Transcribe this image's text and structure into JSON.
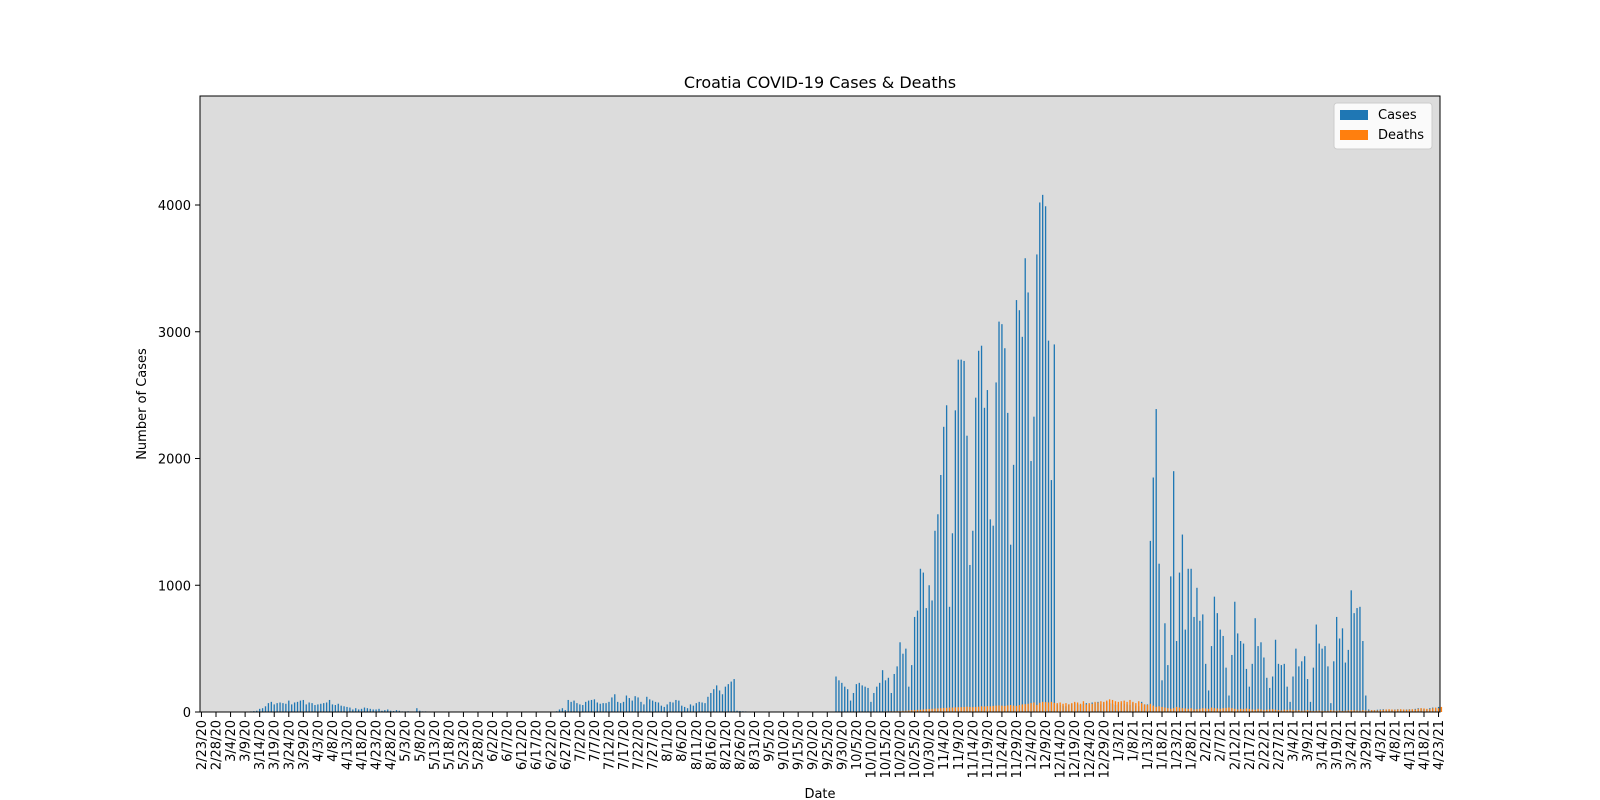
{
  "chart_data": {
    "type": "bar",
    "title": "Croatia COVID-19 Cases & Deaths",
    "xlabel": "Date",
    "ylabel": "Number of Cases",
    "ylim": [
      0,
      4860
    ],
    "yticks": [
      0,
      1000,
      2000,
      3000,
      4000
    ],
    "start_date": "2020-02-23",
    "tick_every": 5,
    "grid": false,
    "legend_position": "top-right",
    "series": [
      {
        "name": "Cases",
        "color": "#1f77b4",
        "values": [
          0,
          0,
          1,
          2,
          0,
          0,
          1,
          2,
          3,
          0,
          0,
          2,
          0,
          0,
          1,
          2,
          3,
          5,
          7,
          10,
          25,
          30,
          45,
          70,
          80,
          60,
          70,
          75,
          70,
          65,
          90,
          60,
          75,
          80,
          90,
          95,
          60,
          75,
          70,
          55,
          60,
          65,
          70,
          75,
          95,
          60,
          55,
          65,
          50,
          45,
          40,
          35,
          20,
          30,
          20,
          25,
          35,
          30,
          25,
          20,
          20,
          25,
          10,
          15,
          20,
          10,
          8,
          15,
          10,
          5,
          5,
          6,
          4,
          3,
          30,
          10,
          5,
          5,
          3,
          2,
          1,
          1,
          2,
          1,
          1,
          1,
          1,
          0,
          0,
          0,
          0,
          0,
          0,
          1,
          0,
          0,
          0,
          0,
          0,
          0,
          0,
          0,
          0,
          0,
          0,
          0,
          0,
          0,
          0,
          0,
          0,
          0,
          0,
          1,
          0,
          1,
          0,
          1,
          0,
          1,
          2,
          4,
          6,
          20,
          30,
          15,
          95,
          80,
          90,
          70,
          60,
          55,
          80,
          90,
          95,
          100,
          75,
          65,
          70,
          70,
          80,
          115,
          140,
          80,
          70,
          80,
          130,
          110,
          90,
          125,
          115,
          80,
          60,
          120,
          100,
          90,
          80,
          75,
          50,
          40,
          60,
          80,
          75,
          95,
          90,
          50,
          40,
          30,
          60,
          50,
          70,
          80,
          75,
          70,
          120,
          150,
          180,
          210,
          170,
          140,
          200,
          220,
          240,
          260,
          10,
          8,
          6,
          5,
          4,
          3,
          2,
          2,
          1,
          1,
          1,
          1,
          1,
          1,
          1,
          1,
          1,
          1,
          1,
          1,
          1,
          1,
          1,
          1,
          1,
          1,
          1,
          1,
          1,
          1,
          1,
          1,
          1,
          1,
          280,
          250,
          230,
          200,
          180,
          90,
          150,
          220,
          230,
          210,
          200,
          190,
          80,
          150,
          200,
          230,
          330,
          250,
          270,
          150,
          300,
          360,
          550,
          460,
          500,
          200,
          370,
          750,
          800,
          1130,
          1100,
          820,
          1000,
          880,
          1430,
          1560,
          1870,
          2250,
          2420,
          830,
          1410,
          2380,
          2780,
          2780,
          2770,
          2180,
          1160,
          1430,
          2480,
          2850,
          2890,
          2400,
          2540,
          1520,
          1470,
          2600,
          3080,
          3060,
          2870,
          2360,
          1320,
          1950,
          3250,
          3170,
          2960,
          3580,
          3310,
          1980,
          2330,
          3610,
          4020,
          4080,
          3990,
          2930,
          1830,
          2900,
          60,
          55,
          50,
          45,
          60,
          65,
          70,
          60,
          55,
          65,
          70,
          60,
          75,
          70,
          80,
          60,
          75,
          80,
          70,
          65,
          55,
          60,
          70,
          65,
          60,
          55,
          70,
          50,
          45,
          80,
          60,
          60,
          1350,
          1850,
          2390,
          1170,
          250,
          700,
          370,
          1070,
          1900,
          560,
          1100,
          1400,
          650,
          1130,
          1130,
          750,
          980,
          720,
          770,
          380,
          170,
          520,
          910,
          780,
          650,
          600,
          350,
          130,
          450,
          870,
          620,
          560,
          540,
          340,
          200,
          380,
          740,
          520,
          550,
          430,
          270,
          190,
          280,
          570,
          380,
          370,
          380,
          200,
          80,
          280,
          500,
          360,
          400,
          440,
          260,
          80,
          350,
          690,
          540,
          500,
          520,
          360,
          70,
          400,
          750,
          580,
          660,
          390,
          490,
          960,
          780,
          820,
          830,
          560,
          130,
          20,
          15,
          15,
          18,
          20,
          22,
          20,
          18,
          15,
          20,
          22,
          20,
          18,
          20,
          22,
          20,
          25,
          30,
          28,
          25,
          22,
          30,
          35,
          30,
          40
        ]
      },
      {
        "name": "Deaths",
        "color": "#ff7f0e",
        "values": [
          0,
          0,
          0,
          0,
          0,
          0,
          0,
          0,
          0,
          0,
          0,
          0,
          0,
          0,
          0,
          0,
          0,
          0,
          0,
          0,
          0,
          0,
          0,
          0,
          0,
          0,
          0,
          0,
          0,
          0,
          0,
          0,
          1,
          1,
          1,
          2,
          2,
          2,
          2,
          3,
          3,
          2,
          3,
          2,
          3,
          3,
          2,
          3,
          3,
          2,
          3,
          2,
          3,
          2,
          2,
          2,
          2,
          2,
          2,
          2,
          1,
          1,
          1,
          1,
          1,
          1,
          1,
          1,
          1,
          1,
          1,
          1,
          1,
          0,
          0,
          0,
          0,
          0,
          0,
          0,
          0,
          0,
          0,
          0,
          0,
          0,
          0,
          0,
          0,
          0,
          0,
          0,
          0,
          0,
          0,
          0,
          0,
          0,
          0,
          0,
          0,
          0,
          0,
          0,
          0,
          0,
          0,
          0,
          0,
          0,
          0,
          0,
          0,
          0,
          0,
          0,
          0,
          0,
          0,
          0,
          0,
          0,
          0,
          0,
          0,
          0,
          0,
          1,
          1,
          1,
          1,
          1,
          1,
          1,
          1,
          1,
          2,
          1,
          1,
          1,
          1,
          1,
          1,
          1,
          1,
          1,
          1,
          1,
          1,
          1,
          1,
          1,
          1,
          1,
          1,
          1,
          1,
          1,
          1,
          1,
          1,
          1,
          1,
          1,
          1,
          1,
          1,
          1,
          1,
          1,
          1,
          1,
          2,
          2,
          2,
          2,
          2,
          2,
          2,
          2,
          2,
          2,
          2,
          2,
          2,
          1,
          1,
          1,
          1,
          1,
          1,
          1,
          1,
          1,
          1,
          1,
          1,
          1,
          1,
          1,
          1,
          1,
          1,
          1,
          1,
          1,
          1,
          1,
          1,
          2,
          2,
          2,
          2,
          2,
          1,
          1,
          1,
          1,
          1,
          1,
          2,
          2,
          2,
          2,
          2,
          2,
          2,
          2,
          3,
          3,
          3,
          3,
          4,
          4,
          4,
          5,
          5,
          6,
          6,
          7,
          8,
          9,
          10,
          12,
          14,
          15,
          17,
          18,
          20,
          22,
          24,
          25,
          27,
          28,
          30,
          32,
          33,
          35,
          35,
          37,
          38,
          38,
          40,
          42,
          40,
          38,
          40,
          42,
          45,
          44,
          46,
          45,
          48,
          50,
          52,
          50,
          48,
          52,
          55,
          50,
          48,
          55,
          60,
          62,
          65,
          70,
          75,
          55,
          72,
          80,
          78,
          75,
          80,
          72,
          70,
          75,
          65,
          70,
          60,
          70,
          80,
          75,
          65,
          85,
          60,
          70,
          65,
          80,
          75,
          85,
          80,
          90,
          100,
          95,
          85,
          80,
          85,
          90,
          80,
          95,
          80,
          70,
          85,
          70,
          60,
          55,
          65,
          50,
          40,
          45,
          40,
          35,
          30,
          25,
          30,
          40,
          35,
          30,
          28,
          25,
          30,
          20,
          22,
          25,
          30,
          28,
          25,
          35,
          30,
          28,
          25,
          30,
          32,
          35,
          30,
          25,
          20,
          25,
          22,
          28,
          24,
          20,
          18,
          25,
          20,
          15,
          18,
          20,
          22,
          18,
          15,
          12,
          18,
          15,
          20,
          15,
          12,
          15,
          10,
          12,
          15,
          10,
          8,
          10,
          12,
          10,
          8,
          10,
          15,
          12,
          10,
          12,
          8,
          10,
          12,
          15,
          14,
          12,
          10,
          15,
          12,
          10,
          15,
          14,
          12,
          15,
          18,
          20,
          22,
          20,
          18,
          20,
          22,
          20,
          18,
          20,
          22,
          20,
          25,
          30,
          28,
          25,
          22,
          30,
          35,
          30,
          40
        ]
      }
    ]
  }
}
